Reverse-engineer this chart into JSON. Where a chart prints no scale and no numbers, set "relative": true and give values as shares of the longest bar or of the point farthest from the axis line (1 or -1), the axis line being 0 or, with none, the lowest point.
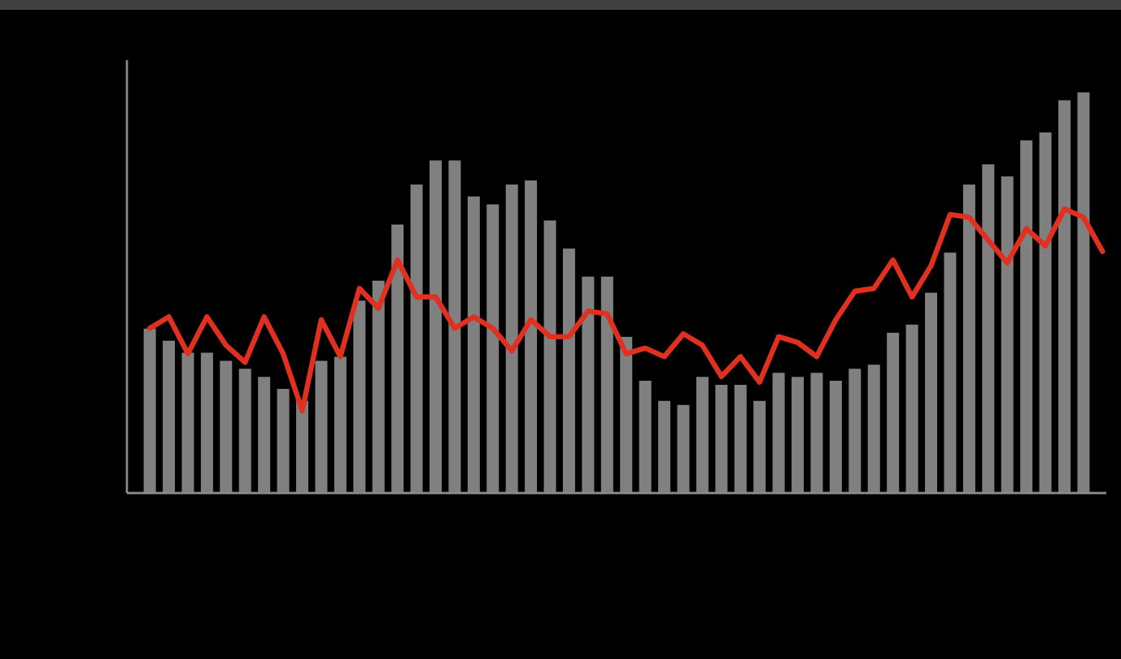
{
  "chart_data": [
    {
      "type": "bar",
      "relative": true,
      "color": "#808080",
      "categories": [
        null,
        null,
        null,
        null,
        null,
        null,
        null,
        null,
        null,
        null,
        null,
        null,
        null,
        null,
        null,
        null,
        null,
        null,
        null,
        null,
        null,
        null,
        null,
        null,
        null,
        null,
        null,
        null,
        null,
        null,
        null,
        null,
        null,
        null,
        null,
        null,
        null,
        null,
        null,
        null,
        null,
        null,
        null,
        null,
        null,
        null,
        null,
        null,
        null,
        null
      ],
      "values": [
        0.41,
        0.38,
        0.35,
        0.35,
        0.33,
        0.31,
        0.29,
        0.26,
        0.23,
        0.33,
        0.34,
        0.48,
        0.53,
        0.67,
        0.77,
        0.83,
        0.83,
        0.74,
        0.72,
        0.77,
        0.78,
        0.68,
        0.61,
        0.54,
        0.54,
        0.39,
        0.28,
        0.23,
        0.22,
        0.29,
        0.27,
        0.27,
        0.23,
        0.3,
        0.29,
        0.3,
        0.28,
        0.31,
        0.32,
        0.4,
        0.42,
        0.5,
        0.6,
        0.77,
        0.82,
        0.79,
        0.88,
        0.9,
        0.98,
        1
      ]
    },
    {
      "type": "line",
      "relative": true,
      "color": "#e03020",
      "categories": [
        null,
        null,
        null,
        null,
        null,
        null,
        null,
        null,
        null,
        null,
        null,
        null,
        null,
        null,
        null,
        null,
        null,
        null,
        null,
        null,
        null,
        null,
        null,
        null,
        null,
        null,
        null,
        null,
        null,
        null,
        null,
        null,
        null,
        null,
        null,
        null,
        null,
        null,
        null,
        null,
        null,
        null,
        null,
        null,
        null,
        null,
        null,
        null,
        null,
        null,
        null
      ],
      "values": [
        0.58,
        0.62,
        0.49,
        0.62,
        0.52,
        0.46,
        0.62,
        0.49,
        0.29,
        0.61,
        0.48,
        0.72,
        0.65,
        0.82,
        0.69,
        0.69,
        0.58,
        0.62,
        0.58,
        0.5,
        0.61,
        0.55,
        0.55,
        0.64,
        0.63,
        0.49,
        0.51,
        0.48,
        0.56,
        0.52,
        0.41,
        0.48,
        0.39,
        0.55,
        0.53,
        0.48,
        0.61,
        0.71,
        0.72,
        0.82,
        0.69,
        0.8,
        0.98,
        0.97,
        0.89,
        0.81,
        0.93,
        0.87,
        1,
        0.97,
        0.85
      ]
    }
  ]
}
